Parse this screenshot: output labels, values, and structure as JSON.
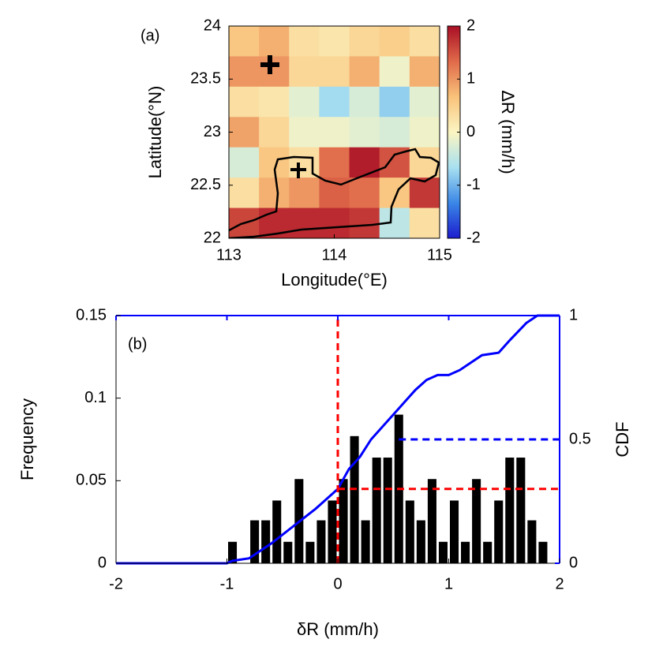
{
  "chart_data": [
    {
      "type": "heatmap",
      "panel_label": "(a)",
      "xlabel": "Longitude(°E)",
      "ylabel": "Latitude(°N)",
      "xlim": [
        113,
        115
      ],
      "ylim": [
        22,
        24
      ],
      "xticks": [
        113,
        114,
        115
      ],
      "yticks": [
        22,
        22.5,
        23,
        23.5,
        24
      ],
      "values": [
        [
          0.6,
          0.8,
          0.3,
          0.2,
          0.4,
          0.5,
          0.3
        ],
        [
          1.0,
          1.0,
          0.4,
          0.4,
          0.8,
          -0.1,
          0.8
        ],
        [
          0.3,
          0.2,
          -0.2,
          -0.7,
          -0.3,
          -0.8,
          -0.2
        ],
        [
          0.9,
          0.4,
          -0.1,
          -0.1,
          -0.2,
          -0.3,
          -0.1
        ],
        [
          -0.3,
          0.6,
          0.3,
          1.3,
          1.9,
          1.5,
          0.4
        ],
        [
          0.3,
          0.8,
          1.0,
          1.4,
          1.3,
          0.6,
          1.7
        ],
        [
          1.6,
          1.8,
          1.8,
          1.8,
          1.7,
          -0.5,
          0.3
        ]
      ],
      "colorbar": {
        "label": "ΔR (mm/h)",
        "lim": [
          -2,
          2
        ],
        "ticks": [
          -2,
          -1,
          0,
          1,
          2
        ],
        "colormap": [
          "#1c1ccf",
          "#3a87e6",
          "#a8e0f0",
          "#fbf5c2",
          "#f9c27a",
          "#e06a4a",
          "#a90f25"
        ]
      }
    },
    {
      "type": "histogram",
      "panel_label": "(b)",
      "xlabel": "δR (mm/h)",
      "ylabel": "Frequency",
      "y2label": "CDF",
      "xlim": [
        -2,
        2
      ],
      "xticks": [
        -2,
        -1,
        0,
        1,
        2
      ],
      "ylim": [
        0,
        0.15
      ],
      "yticks": [
        0,
        0.05,
        0.1,
        0.15
      ],
      "y2lim": [
        0,
        1
      ],
      "y2ticks": [
        0,
        0.5,
        1
      ],
      "y2color": "#0000ff",
      "color": "#000000",
      "bins": [
        -1.0,
        -0.9,
        -0.8,
        -0.7,
        -0.6,
        -0.5,
        -0.4,
        -0.3,
        -0.2,
        -0.1,
        0.0,
        0.1,
        0.2,
        0.3,
        0.4,
        0.5,
        0.6,
        0.7,
        0.8,
        0.9,
        1.0,
        1.1,
        1.2,
        1.3,
        1.4,
        1.5,
        1.6,
        1.7,
        1.8,
        1.9
      ],
      "values": [
        0.013,
        0,
        0.026,
        0.026,
        0.038,
        0.013,
        0.051,
        0.013,
        0.026,
        0.038,
        0.051,
        0.077,
        0.026,
        0.064,
        0.064,
        0.09,
        0.038,
        0.026,
        0.051,
        0.013,
        0.038,
        0.013,
        0.051,
        0.013,
        0.038,
        0.064,
        0.064,
        0.026,
        0.013
      ],
      "cdf": {
        "axis": "y2",
        "color": "#0000ff",
        "x": [
          -2,
          -1,
          -0.95,
          -0.8,
          -0.6,
          -0.4,
          -0.2,
          -0.1,
          0,
          0.1,
          0.2,
          0.3,
          0.5,
          0.6,
          0.7,
          0.8,
          0.9,
          1.0,
          1.1,
          1.3,
          1.45,
          1.55,
          1.7,
          1.8,
          2
        ],
        "values": [
          0,
          0,
          0.01,
          0.02,
          0.08,
          0.15,
          0.22,
          0.26,
          0.3,
          0.38,
          0.43,
          0.5,
          0.6,
          0.65,
          0.7,
          0.74,
          0.76,
          0.76,
          0.78,
          0.84,
          0.85,
          0.9,
          0.97,
          1.0,
          1.0
        ]
      },
      "reference_lines": [
        {
          "orientation": "vertical",
          "value": 0,
          "color": "#ff0000"
        },
        {
          "orientation": "horizontal",
          "axis": "y2",
          "value": 0.3,
          "from": 0,
          "color": "#ff0000"
        },
        {
          "orientation": "horizontal",
          "axis": "y2",
          "value": 0.5,
          "from": 0.55,
          "color": "#0000ff"
        }
      ]
    }
  ]
}
